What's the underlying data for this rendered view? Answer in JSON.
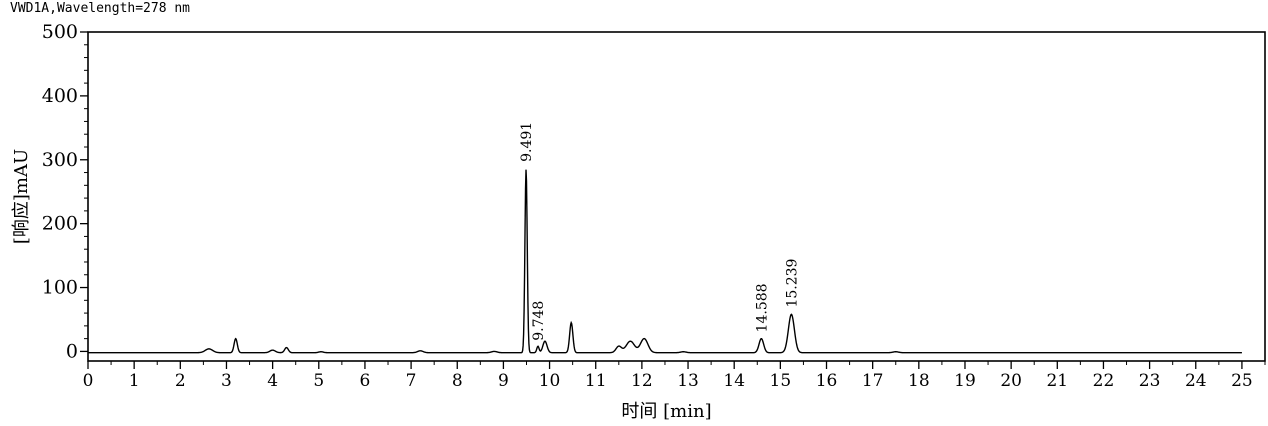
{
  "chart_data": {
    "type": "line",
    "title": "VWD1A,Wavelength=278 nm",
    "xlabel": "时间 [min]",
    "ylabel": "[响应]mAU",
    "xlim": [
      0,
      25.5
    ],
    "ylim": [
      -15,
      500
    ],
    "xticks": [
      0,
      1,
      2,
      3,
      4,
      5,
      6,
      7,
      8,
      9,
      10,
      11,
      12,
      13,
      14,
      15,
      16,
      17,
      18,
      19,
      20,
      21,
      22,
      23,
      24,
      25
    ],
    "yticks": [
      0,
      100,
      200,
      300,
      400,
      500
    ],
    "grid": false,
    "series": [
      {
        "baseline": -2,
        "peaks": [
          {
            "rt": 2.62,
            "height": 6,
            "width": 0.08
          },
          {
            "rt": 3.2,
            "height": 22,
            "width": 0.035
          },
          {
            "rt": 4.0,
            "height": 4,
            "width": 0.06
          },
          {
            "rt": 4.3,
            "height": 8,
            "width": 0.04
          },
          {
            "rt": 5.05,
            "height": 1.5,
            "width": 0.05
          },
          {
            "rt": 7.2,
            "height": 3,
            "width": 0.06
          },
          {
            "rt": 8.8,
            "height": 2,
            "width": 0.06
          },
          {
            "rt": 9.491,
            "height": 287,
            "width": 0.025
          },
          {
            "rt": 9.748,
            "height": 10,
            "width": 0.025
          },
          {
            "rt": 9.9,
            "height": 18,
            "width": 0.045
          },
          {
            "rt": 10.47,
            "height": 47,
            "width": 0.035
          },
          {
            "rt": 11.5,
            "height": 10,
            "width": 0.06
          },
          {
            "rt": 11.75,
            "height": 18,
            "width": 0.09
          },
          {
            "rt": 12.05,
            "height": 22,
            "width": 0.08
          },
          {
            "rt": 12.9,
            "height": 1.5,
            "width": 0.06
          },
          {
            "rt": 14.588,
            "height": 22,
            "width": 0.05
          },
          {
            "rt": 15.239,
            "height": 60,
            "width": 0.065
          },
          {
            "rt": 17.5,
            "height": 1.5,
            "width": 0.06
          }
        ]
      }
    ],
    "peak_labels": [
      {
        "text": "9.491",
        "rt": 9.491,
        "y": 292
      },
      {
        "text": "9.748",
        "rt": 9.748,
        "y": 12
      },
      {
        "text": "14.588",
        "rt": 14.588,
        "y": 25
      },
      {
        "text": "15.239",
        "rt": 15.239,
        "y": 64
      }
    ]
  }
}
